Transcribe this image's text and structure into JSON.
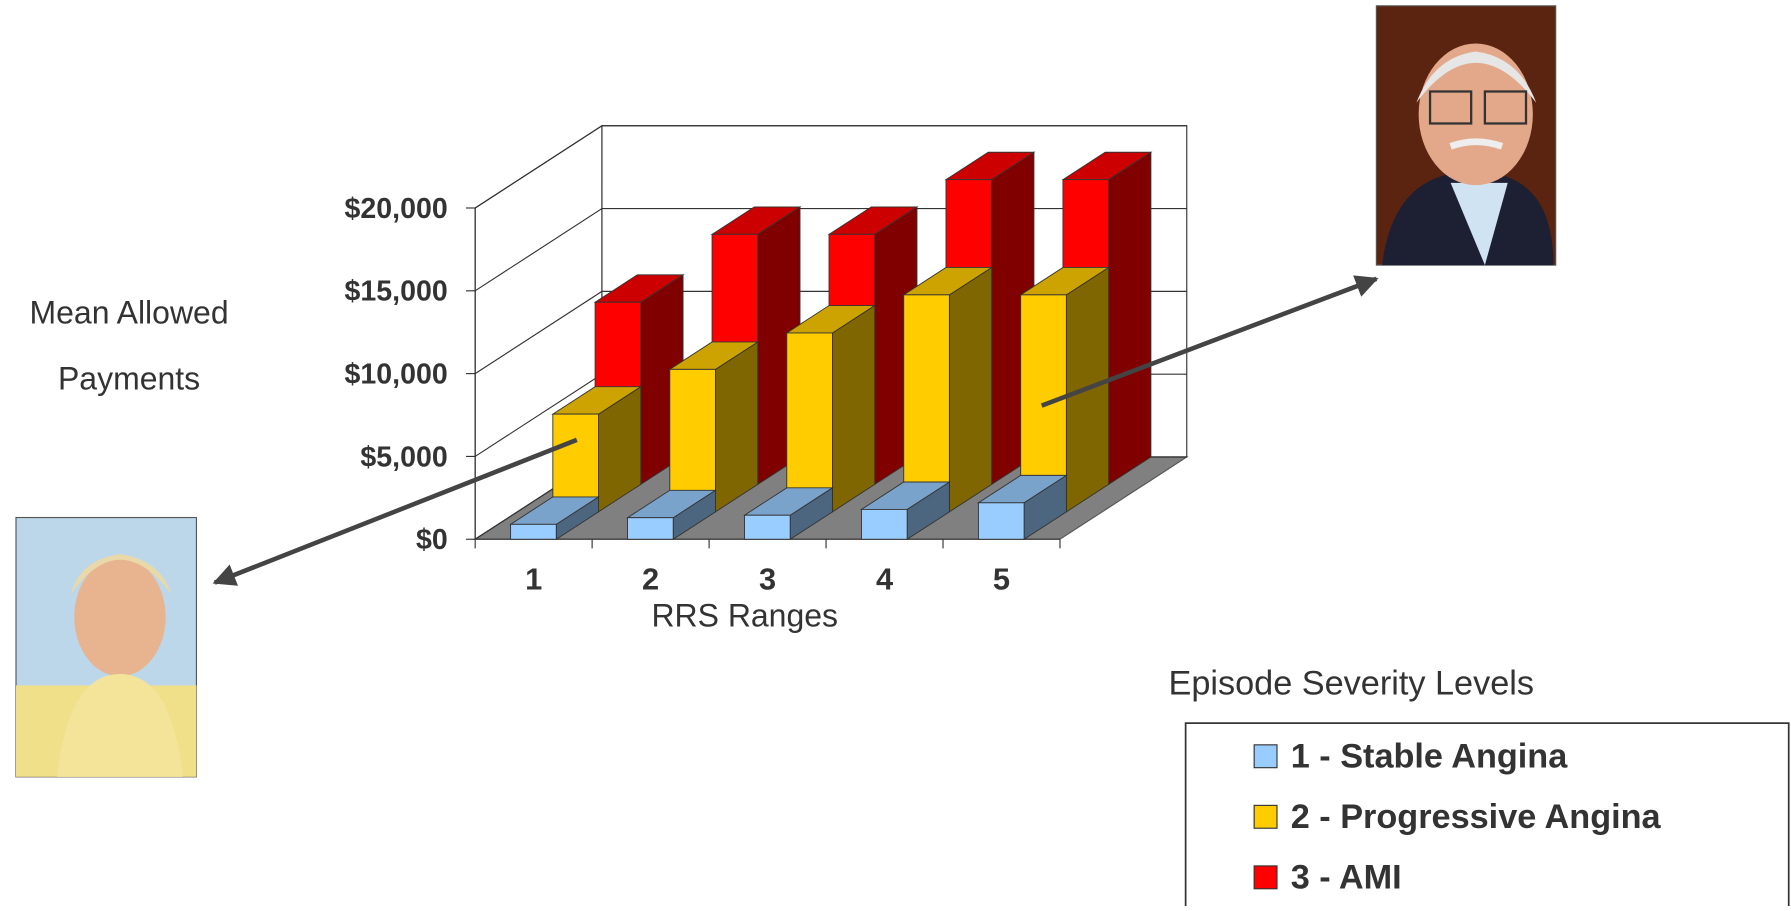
{
  "chart_data": {
    "type": "bar",
    "ylabel": "Mean Allowed Payments",
    "xlabel": "RRS Ranges",
    "categories": [
      "1",
      "2",
      "3",
      "4",
      "5"
    ],
    "series": [
      {
        "name": "1 - Stable Angina",
        "color": "#99ccff",
        "values": [
          900,
          1300,
          1450,
          1800,
          2200
        ]
      },
      {
        "name": "2 - Progressive Angina",
        "color": "#ffcc00",
        "values": [
          5900,
          8600,
          10800,
          13100,
          13100
        ]
      },
      {
        "name": "3 - AMI",
        "color": "#ff0000",
        "values": [
          11000,
          15100,
          15100,
          18400,
          18400
        ]
      }
    ],
    "ylim": [
      0,
      20000
    ],
    "yticks": [
      {
        "value": 0,
        "label": "$0"
      },
      {
        "value": 5000,
        "label": "$5,000"
      },
      {
        "value": 10000,
        "label": "$10,000"
      },
      {
        "value": 15000,
        "label": "$15,000"
      },
      {
        "value": 20000,
        "label": "$20,000"
      }
    ],
    "grid": true,
    "legend_title": "Episode Severity Levels"
  }
}
